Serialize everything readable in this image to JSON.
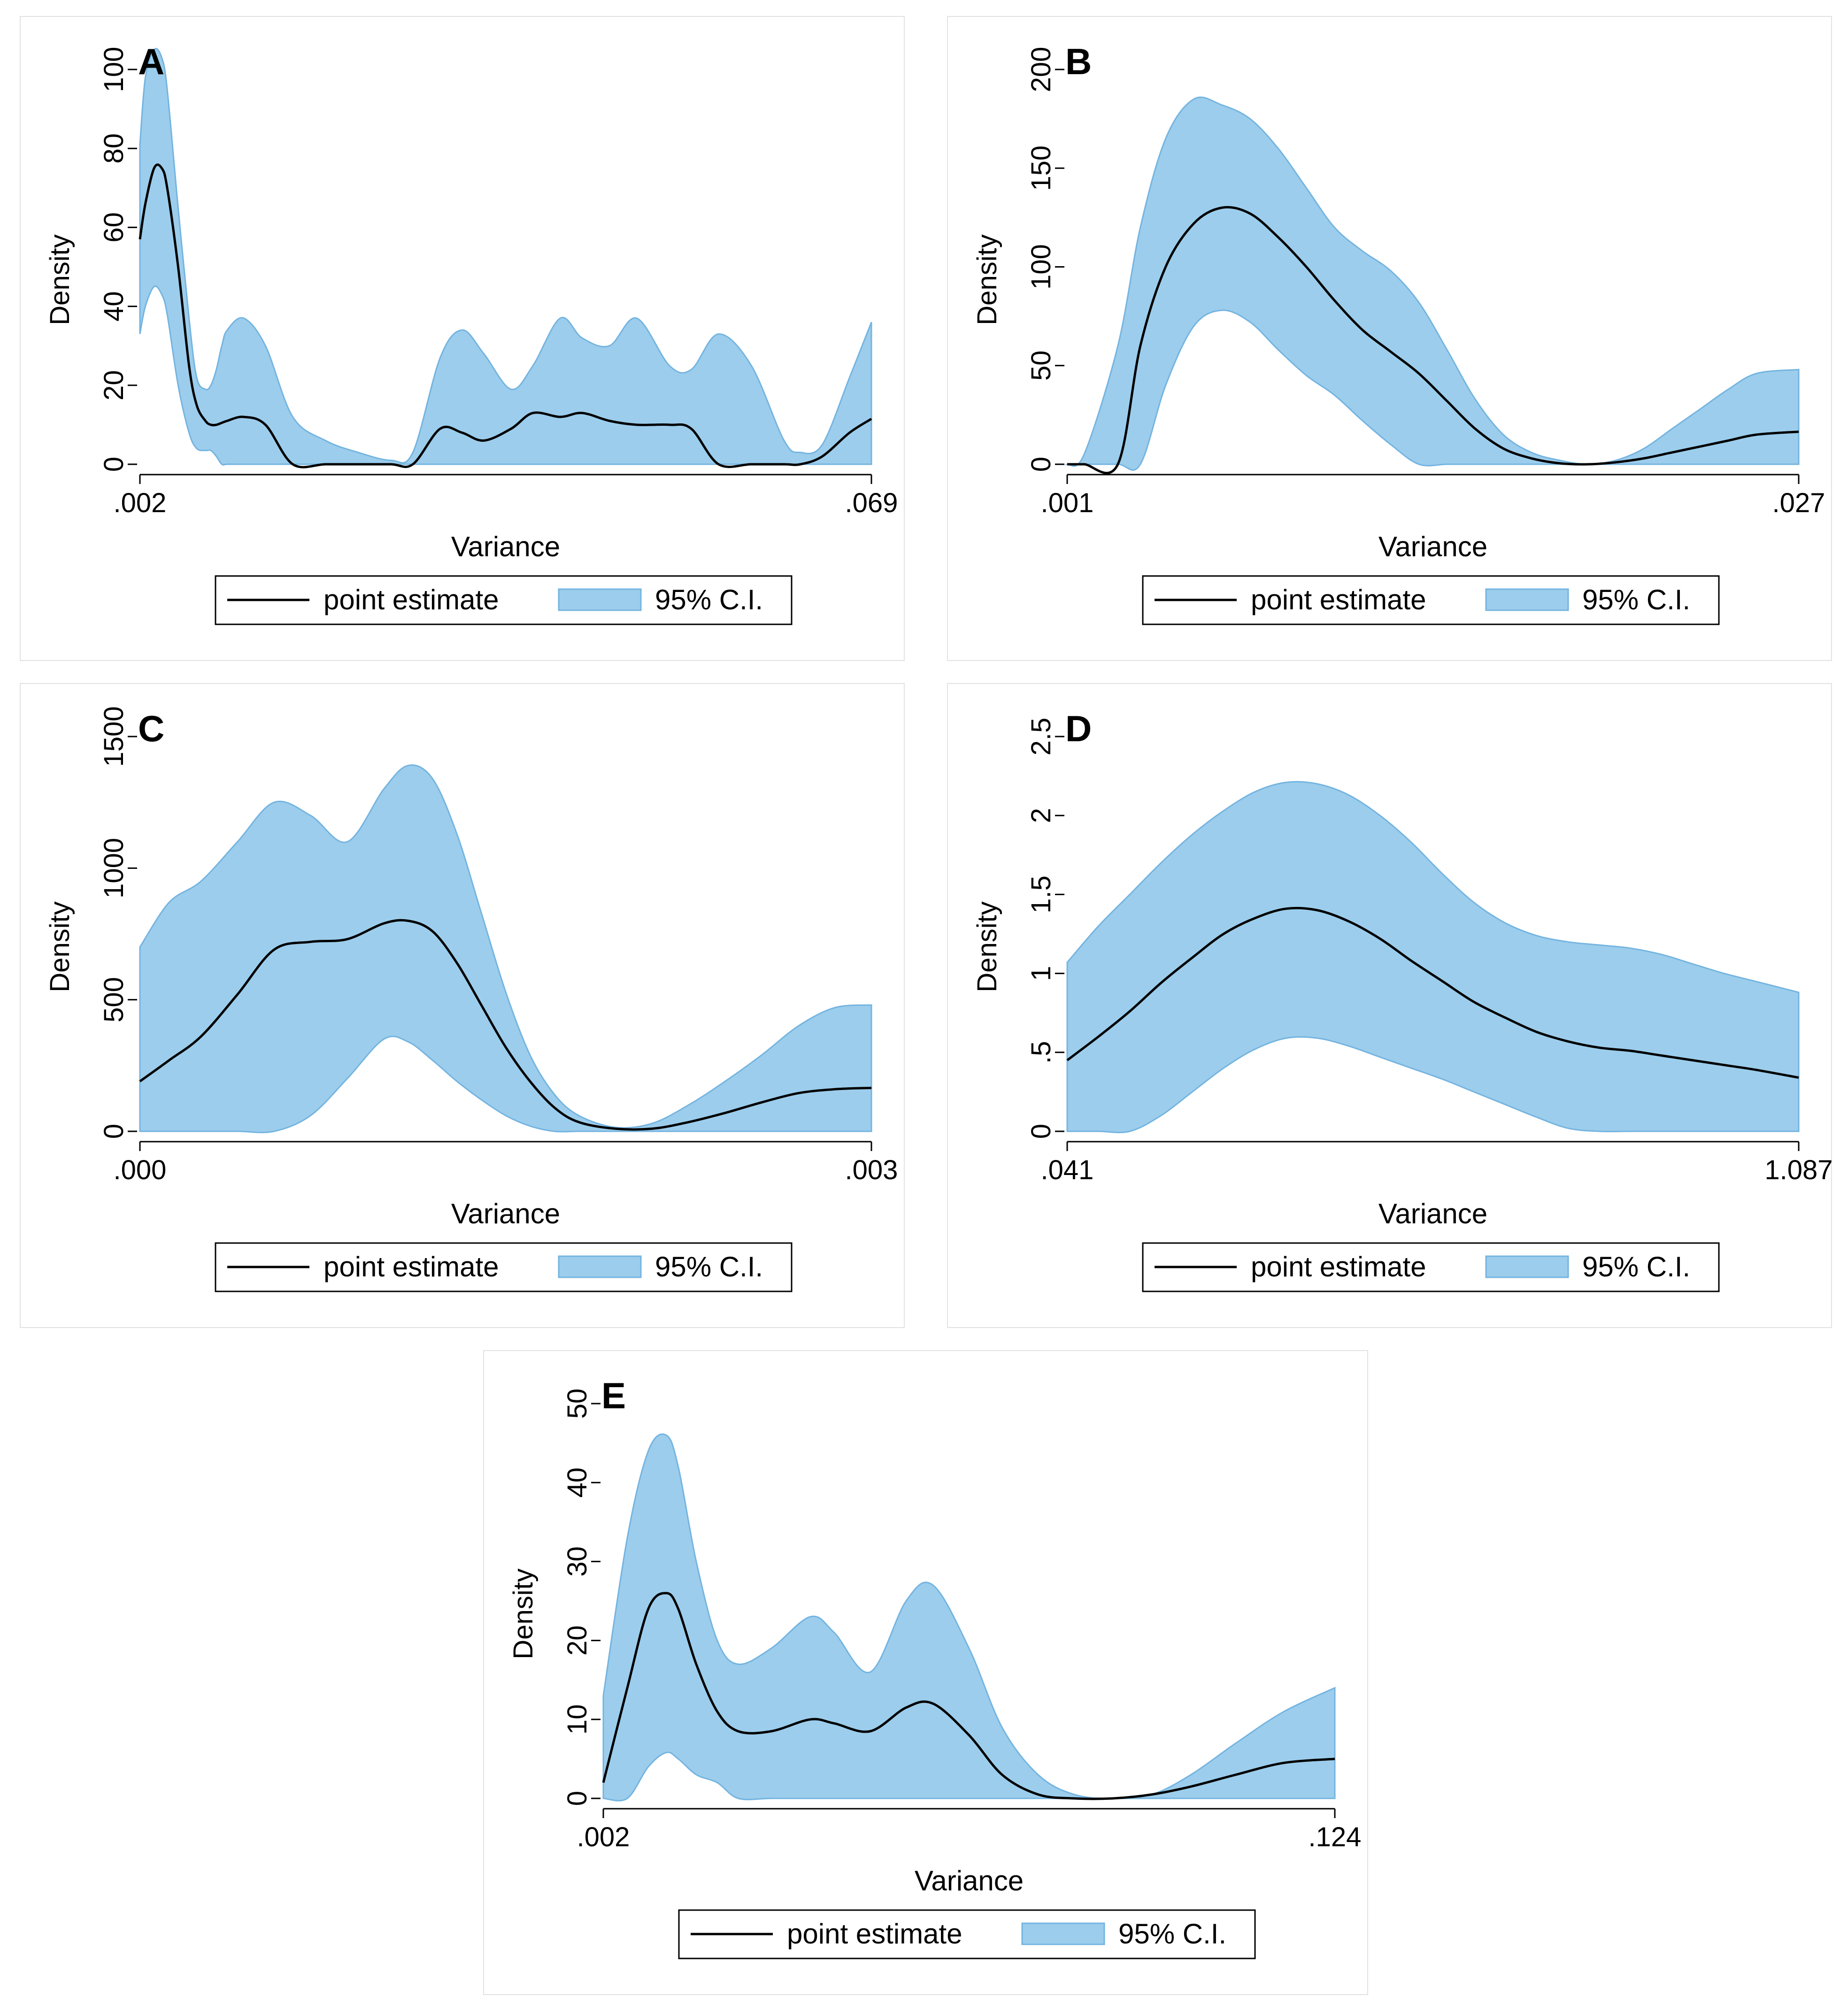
{
  "legend": {
    "line_label": "point estimate",
    "band_label": "95% C.I."
  },
  "colors": {
    "band": "#9ccdec",
    "band_edge": "#74b4e0",
    "line": "#000000",
    "panel_border": "#e2e2e2"
  },
  "chart_data": [
    {
      "panel": "A",
      "type": "area",
      "xlabel": "Variance",
      "ylabel": "Density",
      "xlim": [
        0.002,
        0.069
      ],
      "ylim": [
        0,
        100
      ],
      "xticks": [
        ".002",
        ".069"
      ],
      "yticks": [
        {
          "v": 0,
          "label": "0"
        },
        {
          "v": 20,
          "label": "20"
        },
        {
          "v": 40,
          "label": "40"
        },
        {
          "v": 60,
          "label": "60"
        },
        {
          "v": 80,
          "label": "80"
        },
        {
          "v": 100,
          "label": "100"
        }
      ],
      "x": [
        0.002,
        0.0025,
        0.0033,
        0.004,
        0.0045,
        0.0055,
        0.0065,
        0.0072,
        0.008,
        0.0085,
        0.009,
        0.0095,
        0.01,
        0.0115,
        0.0135,
        0.016,
        0.019,
        0.022,
        0.025,
        0.027,
        0.0295,
        0.0315,
        0.0335,
        0.036,
        0.038,
        0.0405,
        0.0425,
        0.045,
        0.0475,
        0.0505,
        0.0525,
        0.055,
        0.058,
        0.061,
        0.0625,
        0.0645,
        0.067,
        0.069
      ],
      "series": [
        {
          "name": "point estimate",
          "values": [
            57,
            66,
            75,
            75,
            70,
            50,
            25,
            15,
            11,
            10,
            10,
            10.5,
            11,
            12,
            10,
            0,
            0,
            0,
            0,
            0,
            9,
            8,
            6,
            9,
            13,
            12,
            13,
            11,
            10,
            10,
            9,
            0,
            0,
            0,
            0,
            2,
            8,
            11.5
          ]
        },
        {
          "name": "95% C.I.",
          "lower": [
            33,
            40,
            45,
            43,
            38,
            20,
            8,
            4,
            3.5,
            3.5,
            2,
            0,
            0,
            0,
            0,
            0,
            0,
            0,
            0,
            0,
            0,
            0,
            0,
            0,
            0,
            0,
            0,
            0,
            0,
            0,
            0,
            0,
            0,
            0,
            0,
            0,
            0,
            0
          ],
          "upper": [
            81,
            98,
            105,
            103,
            95,
            65,
            37,
            22,
            19,
            20,
            24,
            30,
            34,
            37,
            30,
            12,
            6,
            3,
            1,
            3,
            27,
            34,
            28,
            19,
            25,
            37,
            32,
            30,
            37,
            25,
            24,
            33,
            25,
            6,
            3,
            5,
            22,
            36
          ]
        }
      ]
    },
    {
      "panel": "B",
      "type": "area",
      "xlabel": "Variance",
      "ylabel": "Density",
      "xlim": [
        0.001,
        0.027
      ],
      "ylim": [
        0,
        200
      ],
      "xticks": [
        ".001",
        ".027"
      ],
      "yticks": [
        {
          "v": 0,
          "label": "0"
        },
        {
          "v": 50,
          "label": "50"
        },
        {
          "v": 100,
          "label": "100"
        },
        {
          "v": 150,
          "label": "150"
        },
        {
          "v": 200,
          "label": "200"
        }
      ],
      "x": [
        0.001,
        0.0016,
        0.0028,
        0.0036,
        0.0045,
        0.0055,
        0.0065,
        0.0075,
        0.0085,
        0.0095,
        0.0105,
        0.0115,
        0.0125,
        0.0135,
        0.0145,
        0.0155,
        0.0165,
        0.0175,
        0.0185,
        0.0195,
        0.0205,
        0.0215,
        0.0225,
        0.0235,
        0.0245,
        0.0255,
        0.027
      ],
      "series": [
        {
          "name": "point estimate",
          "values": [
            0,
            0,
            0,
            60,
            100,
            122,
            130,
            127,
            115,
            100,
            83,
            68,
            57,
            46,
            32,
            18,
            8,
            3,
            0.5,
            0,
            1,
            3,
            6,
            9,
            12,
            15,
            16.5
          ]
        },
        {
          "name": "95% C.I.",
          "lower": [
            0,
            0,
            0,
            0,
            40,
            70,
            78,
            72,
            58,
            45,
            35,
            22,
            10,
            0,
            0,
            0,
            0,
            0,
            0,
            0,
            0,
            0,
            0,
            0,
            0,
            0,
            0
          ],
          "upper": [
            0,
            5,
            60,
            120,
            165,
            185,
            182,
            175,
            160,
            140,
            120,
            108,
            98,
            82,
            58,
            33,
            15,
            6,
            2,
            0,
            2,
            8,
            18,
            28,
            38,
            46,
            48
          ]
        }
      ]
    },
    {
      "panel": "C",
      "type": "area",
      "xlabel": "Variance",
      "ylabel": "Density",
      "xlim": [
        0,
        0.003
      ],
      "ylim": [
        0,
        1500
      ],
      "xticks": [
        ".000",
        ".003"
      ],
      "yticks": [
        {
          "v": 0,
          "label": "0"
        },
        {
          "v": 500,
          "label": "500"
        },
        {
          "v": 1000,
          "label": "1000"
        },
        {
          "v": 1500,
          "label": "1500"
        }
      ],
      "x": [
        0,
        0.00012,
        0.00025,
        0.0004,
        0.00055,
        0.0007,
        0.00085,
        0.001,
        0.0011,
        0.0012,
        0.0013,
        0.0014,
        0.0015,
        0.0016,
        0.0017,
        0.0018,
        0.00195,
        0.0021,
        0.00225,
        0.0024,
        0.00255,
        0.0027,
        0.00285,
        0.003
      ],
      "series": [
        {
          "name": "point estimate",
          "values": [
            190,
            270,
            360,
            520,
            690,
            720,
            730,
            790,
            800,
            760,
            640,
            480,
            320,
            190,
            90,
            35,
            10,
            10,
            35,
            70,
            110,
            145,
            160,
            165
          ]
        },
        {
          "name": "95% C.I.",
          "lower": [
            0,
            0,
            0,
            0,
            0,
            60,
            200,
            350,
            340,
            270,
            190,
            120,
            60,
            20,
            0,
            0,
            0,
            0,
            0,
            0,
            0,
            0,
            0,
            0
          ],
          "upper": [
            700,
            870,
            950,
            1100,
            1250,
            1200,
            1100,
            1300,
            1390,
            1340,
            1130,
            830,
            530,
            290,
            140,
            60,
            15,
            30,
            100,
            190,
            290,
            400,
            470,
            480
          ]
        }
      ]
    },
    {
      "panel": "D",
      "type": "area",
      "xlabel": "Variance",
      "ylabel": "Density",
      "xlim": [
        0.041,
        1.087
      ],
      "ylim": [
        0,
        2.5
      ],
      "xticks": [
        ".041",
        "1.087"
      ],
      "yticks": [
        {
          "v": 0,
          "label": "0"
        },
        {
          "v": 0.5,
          "label": ".5"
        },
        {
          "v": 1,
          "label": "1"
        },
        {
          "v": 1.5,
          "label": "1.5"
        },
        {
          "v": 2,
          "label": "2"
        },
        {
          "v": 2.5,
          "label": "2.5"
        }
      ],
      "x": [
        0.041,
        0.0857,
        0.1305,
        0.1752,
        0.2199,
        0.2646,
        0.3094,
        0.3541,
        0.3988,
        0.4435,
        0.4883,
        0.533,
        0.5777,
        0.6224,
        0.6672,
        0.7119,
        0.7566,
        0.8013,
        0.8461,
        0.8908,
        0.9355,
        0.9802,
        1.025,
        1.087
      ],
      "series": [
        {
          "name": "point estimate",
          "values": [
            0.45,
            0.6,
            0.76,
            0.94,
            1.1,
            1.25,
            1.35,
            1.41,
            1.4,
            1.33,
            1.22,
            1.08,
            0.95,
            0.82,
            0.72,
            0.63,
            0.57,
            0.53,
            0.51,
            0.48,
            0.45,
            0.42,
            0.39,
            0.34
          ]
        },
        {
          "name": "95% C.I.",
          "lower": [
            0,
            0,
            0,
            0.1,
            0.25,
            0.4,
            0.52,
            0.59,
            0.59,
            0.54,
            0.47,
            0.4,
            0.33,
            0.25,
            0.17,
            0.09,
            0.02,
            0,
            0,
            0,
            0,
            0,
            0,
            0
          ]
        },
        {
          "name": "95% C.I. upper",
          "upper": [
            1.07,
            1.3,
            1.5,
            1.7,
            1.88,
            2.03,
            2.15,
            2.21,
            2.2,
            2.13,
            2.0,
            1.83,
            1.63,
            1.45,
            1.32,
            1.24,
            1.2,
            1.18,
            1.16,
            1.12,
            1.06,
            1.0,
            0.95,
            0.88
          ]
        }
      ]
    },
    {
      "panel": "E",
      "type": "area",
      "xlabel": "Variance",
      "ylabel": "Density",
      "xlim": [
        0.002,
        0.124
      ],
      "ylim": [
        0,
        50
      ],
      "xticks": [
        ".002",
        ".124"
      ],
      "yticks": [
        {
          "v": 0,
          "label": "0"
        },
        {
          "v": 10,
          "label": "10"
        },
        {
          "v": 20,
          "label": "20"
        },
        {
          "v": 30,
          "label": "30"
        },
        {
          "v": 40,
          "label": "40"
        },
        {
          "v": 50,
          "label": "50"
        }
      ],
      "x": [
        0.002,
        0.006,
        0.0095,
        0.0125,
        0.0145,
        0.0175,
        0.021,
        0.0245,
        0.03,
        0.0365,
        0.0405,
        0.0465,
        0.0525,
        0.057,
        0.063,
        0.0685,
        0.0745,
        0.0805,
        0.087,
        0.0935,
        0.1,
        0.1075,
        0.1155,
        0.124
      ],
      "series": [
        {
          "name": "point estimate",
          "values": [
            2,
            14,
            24,
            26,
            24,
            17,
            11,
            8.5,
            8.5,
            10,
            9.5,
            8.5,
            11.5,
            12,
            8,
            3,
            0.5,
            0,
            0,
            0.5,
            1.5,
            3,
            4.5,
            5
          ]
        },
        {
          "name": "95% C.I.",
          "lower": [
            0,
            0,
            4,
            5.8,
            5,
            3,
            2,
            0,
            0,
            0,
            0,
            0,
            0,
            0,
            0,
            0,
            0,
            0,
            0,
            0,
            0,
            0,
            0,
            0
          ]
        },
        {
          "name": "95% C.I. upper",
          "upper": [
            13,
            33,
            44,
            46,
            42,
            30,
            20,
            17,
            19,
            23,
            21,
            16,
            25,
            27,
            19,
            9,
            3,
            0.5,
            0,
            0.5,
            3,
            7,
            11,
            14
          ]
        }
      ]
    }
  ]
}
